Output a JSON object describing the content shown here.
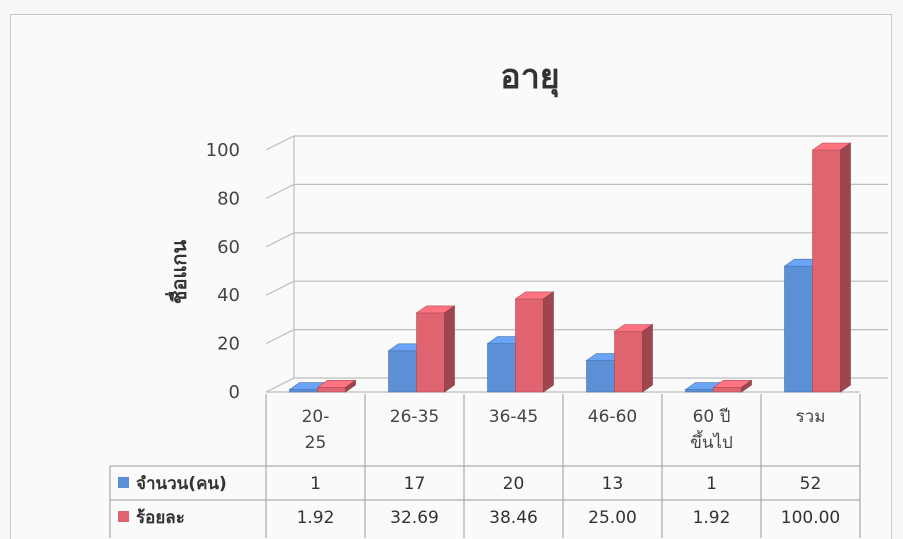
{
  "chart_data": {
    "type": "bar",
    "title": "อายุ",
    "ylabel": "ชื่อแกน",
    "xlabel": "",
    "ylim": [
      0,
      100
    ],
    "yticks": [
      0,
      20,
      40,
      60,
      80,
      100
    ],
    "categories": [
      [
        "20-",
        "25"
      ],
      [
        "26-35"
      ],
      [
        "36-45"
      ],
      [
        "46-60"
      ],
      [
        "60 ปี",
        "ขึ้นไป"
      ],
      [
        "รวม"
      ]
    ],
    "series": [
      {
        "name": "จำนวน(คน)",
        "color": "#5b8fd6",
        "values": [
          1,
          17,
          20,
          13,
          1,
          52
        ],
        "labels": [
          "1",
          "17",
          "20",
          "13",
          "1",
          "52"
        ]
      },
      {
        "name": "ร้อยละ",
        "color": "#e06470",
        "values": [
          1.92,
          32.69,
          38.46,
          25.0,
          1.92,
          100.0
        ],
        "labels": [
          "1.92",
          "32.69",
          "38.46",
          "25.00",
          "1.92",
          "100.00"
        ]
      }
    ],
    "grid": true,
    "legend": "data-table"
  }
}
